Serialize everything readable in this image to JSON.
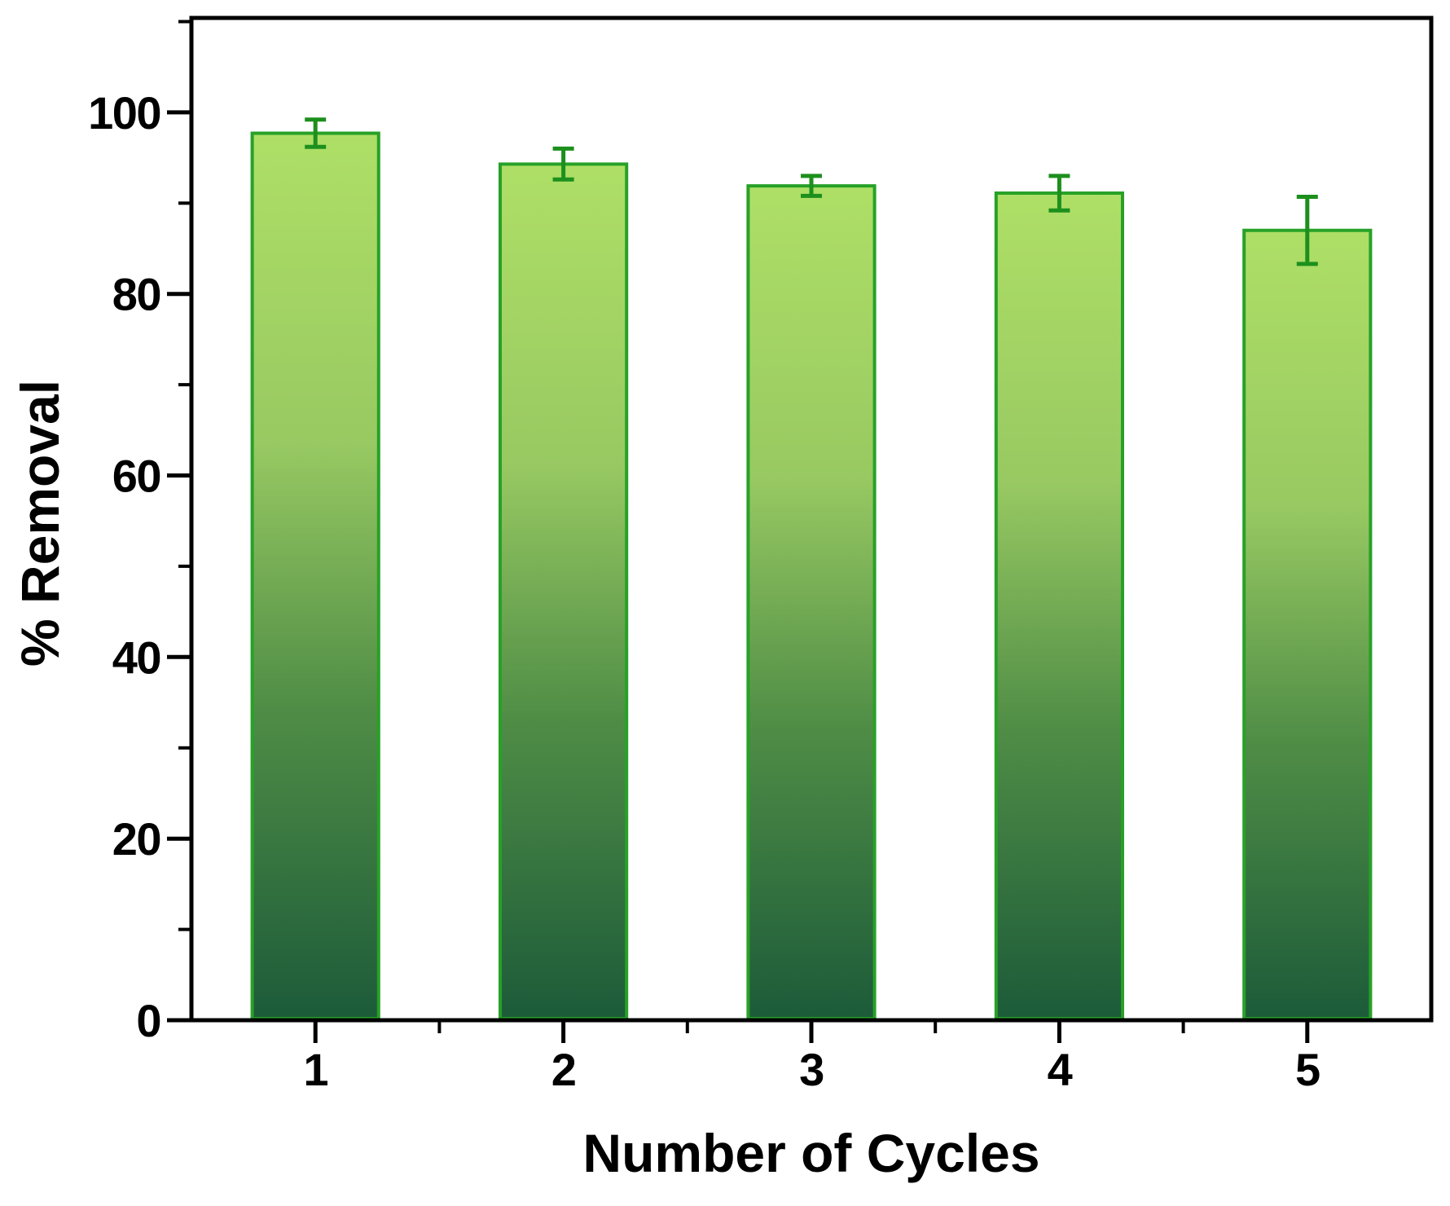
{
  "figure": {
    "background": "#ffffff",
    "description": "Recyclability bar chart: percent removal versus number of cycles with error bars"
  },
  "chart_data": {
    "type": "bar",
    "title": "",
    "xlabel": "Number of Cycles",
    "ylabel": "% Removal",
    "categories": [
      "1",
      "2",
      "3",
      "4",
      "5"
    ],
    "series": [
      {
        "name": "% Removal",
        "values": [
          97.7,
          94.3,
          91.9,
          91.1,
          87.0
        ],
        "errors": [
          1.5,
          1.7,
          1.1,
          1.9,
          3.7
        ]
      }
    ],
    "ylim": [
      0,
      110.4
    ],
    "y_major_ticks": [
      0,
      20,
      40,
      60,
      80,
      100
    ],
    "y_minor_tick_step": 10,
    "x_minor_ticks_between_categories": true,
    "grid": false,
    "legend_visible": false,
    "bar_width_fraction": 0.51,
    "colors": {
      "bar_gradient_top": "#aedf66",
      "bar_gradient_upper_mid": "#98c962",
      "bar_gradient_lower_mid": "#4f8d46",
      "bar_gradient_bottom": "#1c5b39",
      "bar_border": "#27a127",
      "error_bar": "#1d8f1d",
      "axis": "#000000",
      "text": "#000000"
    }
  }
}
